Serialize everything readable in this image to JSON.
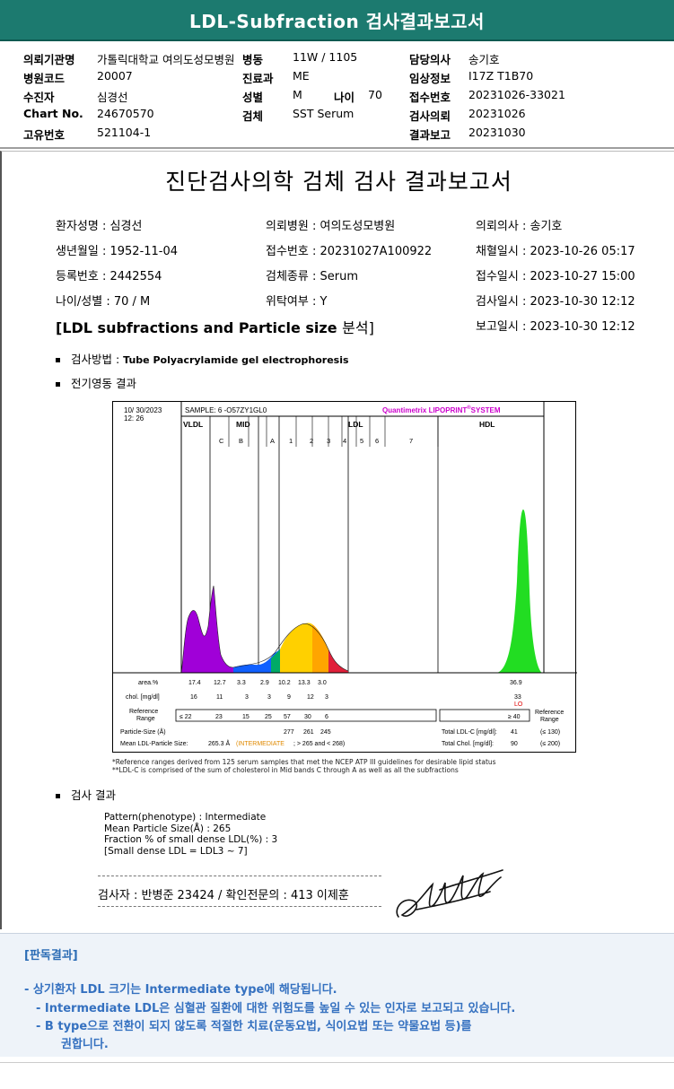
{
  "header": {
    "title": "LDL-Subfraction 검사결과보고서"
  },
  "info": {
    "institution_label": "의뢰기관명",
    "institution": "가톨릭대학교 여의도성모병원",
    "ward_label": "병동",
    "ward": "11W / 1105",
    "doctor_label": "담당의사",
    "doctor": "송기호",
    "hospital_code_label": "병원코드",
    "hospital_code": "20007",
    "dept_label": "진료과",
    "dept": "ME",
    "clinical_label": "임상정보",
    "clinical": "I17Z T1B70",
    "patient_label": "수진자",
    "patient": "심경선",
    "sex_label": "성별",
    "sex": "M",
    "age_label": "나이",
    "age": "70",
    "receipt_label": "접수번호",
    "receipt": "20231026-33021",
    "chart_label": "Chart No.",
    "chart": "24670570",
    "specimen_label": "검체",
    "specimen": "SST Serum",
    "request_label": "검사의뢰",
    "request": "20231026",
    "unique_label": "고유번호",
    "unique": "521104-1",
    "report_label": "결과보고",
    "report": "20231030"
  },
  "report": {
    "title": "진단검사의학 검체 검사 결과보고서",
    "patient": "환자성명 : 심경선",
    "hospital": "의뢰병원 : 여의도성모병원",
    "doctor": "의뢰의사 : 송기호",
    "birth": "생년월일 : 1952-11-04",
    "receipt_no": "접수번호 : 20231027A100922",
    "collected": "채혈일시 : 2023-10-26 05:17",
    "reg_no": "등록번호 : 2442554",
    "specimen_type": "검체종류 : Serum",
    "received": "접수일시 : 2023-10-27 15:00",
    "age_sex": "나이/성별 : 70 / M",
    "consigned": "위탁여부 : Y",
    "tested": "검사일시 : 2023-10-30 12:12",
    "section_en": "[LDL subfractions and Particle size",
    "section_ko": "분석]",
    "reported": "보고일시 : 2023-10-30 12:12",
    "method_label": "검사방법 :",
    "method": "Tube Polyacrylamide gel electrophoresis",
    "electro_label": "전기영동 결과",
    "footnote1": "*Reference ranges derived from 125 serum samples that met the NCEP ATP III guidelines for desirable lipid status",
    "footnote2": "**LDL-C is comprised of the sum of cholesterol in Mid bands C through A as well as all the subfractions",
    "result_label": "검사 결과",
    "pattern": "Pattern(phenotype) : Intermediate",
    "mean_size": "Mean Particle Size(Å) : 265",
    "fraction": "Fraction % of small dense LDL(%) : 3",
    "small_dense": "[Small dense LDL = LDL3 ~ 7]",
    "signer": "검사자 : 반병준  23424  /  확인전문의 : 413  이제훈"
  },
  "chart": {
    "date": "10/ 30/2023",
    "time": "12: 26",
    "sample": "SAMPLE:   6 -O57ZY1GL0",
    "brand": "Quantimetrix LIPOPRINT",
    "brand_reg": "®",
    "brand_system": "SYSTEM",
    "vldl": "VLDL",
    "mid": "MID",
    "ldl": "LDL",
    "hdl": "HDL",
    "mid_bands": [
      "C",
      "B",
      "A"
    ],
    "ldl_bands": [
      "1",
      "2",
      "3",
      "4",
      "5",
      "6",
      "7"
    ],
    "area_label": "area.%",
    "chol_label": "chol. [mg/dl]",
    "ref_label": "Reference Range",
    "ref_label_l1": "Reference",
    "ref_label_l2": "Range",
    "area_values": [
      "17.4",
      "12.7",
      "3.3",
      "2.9",
      "10.2",
      "13.3",
      "3.0"
    ],
    "area_hdl": "36.9",
    "chol_values": [
      "16",
      "11",
      "3",
      "3",
      "9",
      "12",
      "3"
    ],
    "chol_hdl": "33",
    "chol_hdl_flag": "LO",
    "ref_values": [
      "≤ 22",
      "23",
      "15",
      "25",
      "57",
      "30",
      "6"
    ],
    "ref_hdl": "≥ 40",
    "particle_label": "Particle-Size (Å)",
    "particle_values": [
      "277",
      "261",
      "245"
    ],
    "mean_label": "Mean LDL-Particle Size:",
    "mean_value": "265.3 Å",
    "mean_type": "(INTERMEDIATE",
    "mean_crit": "; > 265 and < 268)",
    "total_ldl_label": "Total LDL-C [mg/dl]:",
    "total_ldl": "41",
    "total_ldl_ref": "(≤ 130)",
    "total_chol_label": "Total Chol. [mg/dl]:",
    "total_chol": "90",
    "total_chol_ref": "(≤ 200)",
    "colors": {
      "vldl": "#a000d8",
      "mid": "#1060ff",
      "ldl": "#ffd000",
      "hdl": "#22dd22",
      "brand": "#cc00cc"
    }
  },
  "judgement": {
    "head": "[판독결과]",
    "line1": "-  상기환자 LDL 크기는 Intermediate type에 해당됩니다.",
    "line2": "-  Intermediate LDL은 심혈관 질환에 대한 위험도를 높일 수 있는 인자로 보고되고 있습니다.",
    "line3": "-  B type으로 전환이 되지 않도록 적절한 치료(운동요법, 식이요법 또는 약물요법 등)를",
    "line4": "권합니다."
  }
}
